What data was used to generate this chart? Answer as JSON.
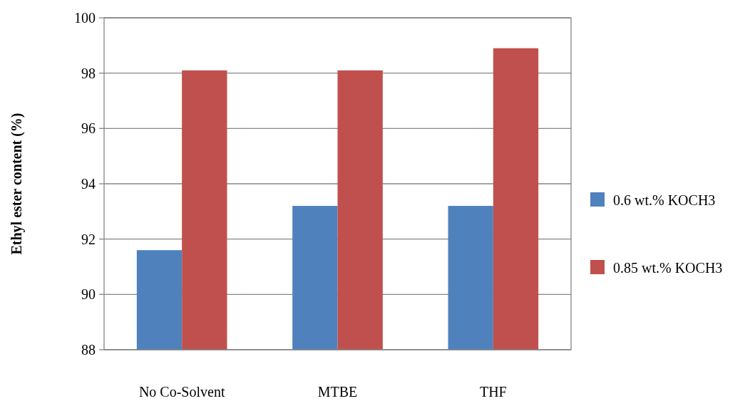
{
  "chart_data": {
    "type": "bar",
    "ylabel": "Ethyl ester content  (%)",
    "categories": [
      "No Co-Solvent",
      "MTBE",
      "THF"
    ],
    "series": [
      {
        "name": "0.6 wt.% KOCH3",
        "color": "#4f81bd",
        "values": [
          91.6,
          93.2,
          93.2
        ]
      },
      {
        "name": "0.85 wt.% KOCH3",
        "color": "#c0504d",
        "values": [
          98.1,
          98.1,
          98.9
        ]
      }
    ],
    "ylim": [
      88,
      100
    ],
    "yticks": [
      88,
      90,
      92,
      94,
      96,
      98,
      100
    ],
    "grid": "y",
    "legend": "right"
  }
}
